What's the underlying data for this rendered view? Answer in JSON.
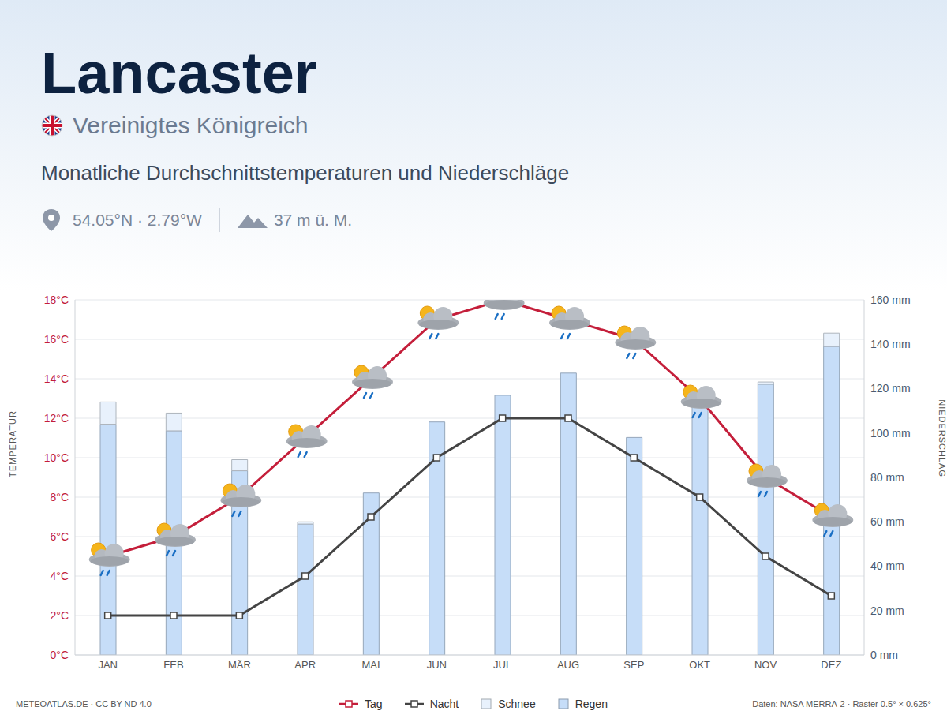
{
  "chart_data": {
    "type": "combo",
    "title": "Lancaster",
    "country": "Vereinigtes Königreich",
    "subtitle": "Monatliche Durchschnittstemperaturen und Niederschläge",
    "location": "54.05°N · 2.79°W",
    "elevation": "37 m ü. M.",
    "credit": "METEOATLAS.DE · CC BY-ND 4.0",
    "source": "Daten: NASA MERRA-2 · Raster 0.5° × 0.625°",
    "y_label": "TEMPERATUR",
    "y2_label": "NIEDERSCHLAG",
    "categories": [
      "JAN",
      "FEB",
      "MÄR",
      "APR",
      "MAI",
      "JUN",
      "JUL",
      "AUG",
      "SEP",
      "OKT",
      "NOV",
      "DEZ"
    ],
    "series": [
      {
        "name": "Tag",
        "type": "line",
        "color": "#c41e3a",
        "marker": "square",
        "axis": "y",
        "values": [
          5,
          6,
          8,
          11,
          14,
          17,
          18,
          17,
          16,
          13,
          9,
          7
        ]
      },
      {
        "name": "Nacht",
        "type": "line",
        "color": "#444444",
        "marker": "square",
        "axis": "y",
        "values": [
          2,
          2,
          2,
          4,
          7,
          10,
          12,
          12,
          10,
          8,
          5,
          3
        ]
      },
      {
        "name": "Schnee",
        "type": "bar",
        "color": "#e8f1fc",
        "axis": "y2",
        "values": [
          10,
          8,
          5,
          1,
          0,
          0,
          0,
          0,
          0,
          0,
          1,
          6
        ]
      },
      {
        "name": "Regen",
        "type": "bar",
        "color": "#c6ddf8",
        "axis": "y2",
        "values": [
          104,
          101,
          83,
          59,
          73,
          105,
          117,
          127,
          98,
          112,
          122,
          139
        ]
      }
    ],
    "stacked": true,
    "ylim": [
      0,
      18
    ],
    "yticks": [
      {
        "value": 0,
        "label": "0°C"
      },
      {
        "value": 2,
        "label": "2°C"
      },
      {
        "value": 4,
        "label": "4°C"
      },
      {
        "value": 6,
        "label": "6°C"
      },
      {
        "value": 8,
        "label": "8°C"
      },
      {
        "value": 10,
        "label": "10°C"
      },
      {
        "value": 12,
        "label": "12°C"
      },
      {
        "value": 14,
        "label": "14°C"
      },
      {
        "value": 16,
        "label": "16°C"
      },
      {
        "value": 18,
        "label": "18°C"
      }
    ],
    "y2lim": [
      0,
      160
    ],
    "y2ticks": [
      {
        "value": 0,
        "label": "0 mm"
      },
      {
        "value": 20,
        "label": "20 mm"
      },
      {
        "value": 40,
        "label": "40 mm"
      },
      {
        "value": 60,
        "label": "60 mm"
      },
      {
        "value": 80,
        "label": "80 mm"
      },
      {
        "value": 100,
        "label": "100 mm"
      },
      {
        "value": 120,
        "label": "120 mm"
      },
      {
        "value": 140,
        "label": "140 mm"
      },
      {
        "value": 160,
        "label": "160 mm"
      }
    ],
    "grid": true,
    "legend": "bottom"
  }
}
